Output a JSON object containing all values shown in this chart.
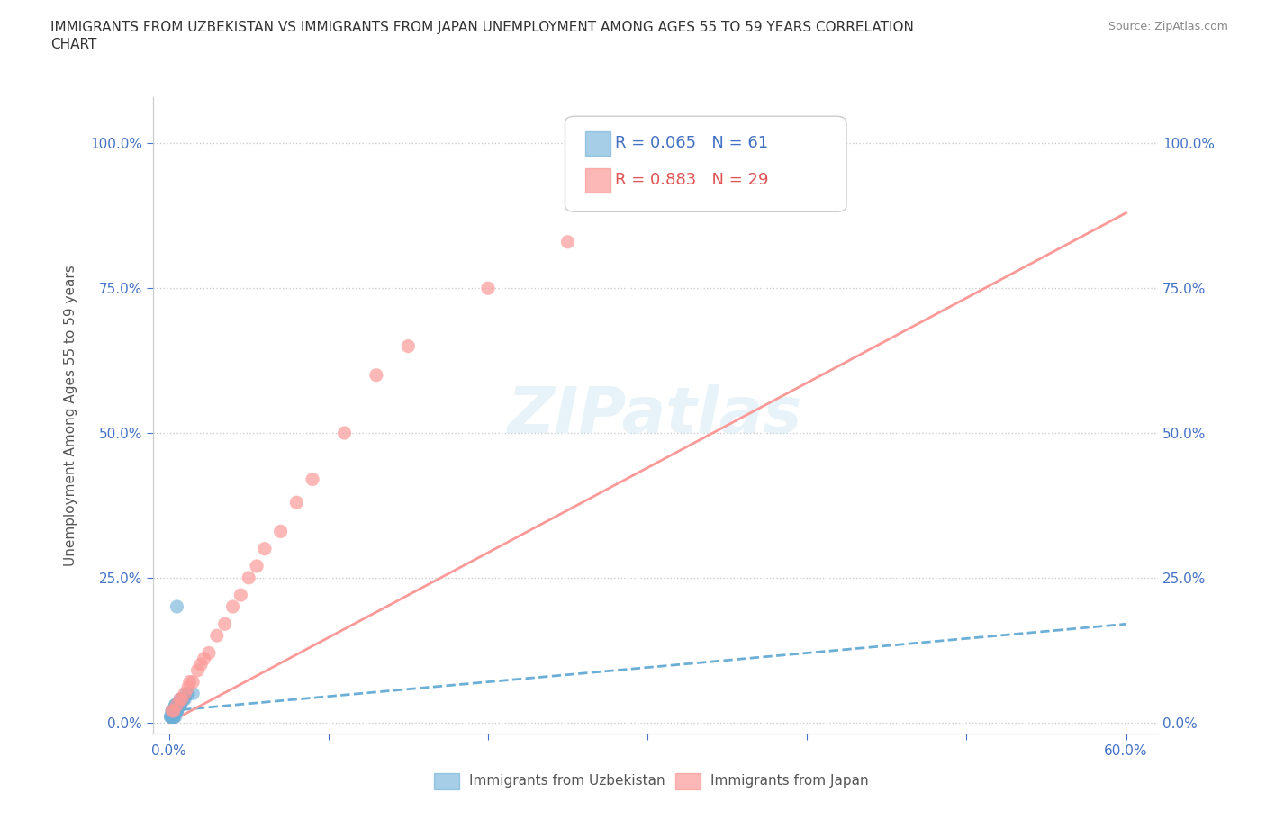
{
  "title_line1": "IMMIGRANTS FROM UZBEKISTAN VS IMMIGRANTS FROM JAPAN UNEMPLOYMENT AMONG AGES 55 TO 59 YEARS CORRELATION",
  "title_line2": "CHART",
  "source": "Source: ZipAtlas.com",
  "ylabel_ticks": [
    0.0,
    0.25,
    0.5,
    0.75,
    1.0
  ],
  "ylabel_labels": [
    "0.0%",
    "25.0%",
    "50.0%",
    "75.0%",
    "100.0%"
  ],
  "xlabel_ticks": [
    0.0,
    0.1,
    0.2,
    0.3,
    0.4,
    0.5,
    0.6
  ],
  "xlabel_labels": [
    "0.0%",
    "",
    "",
    "",
    "",
    "",
    "60.0%"
  ],
  "ylabel_axis_label": "Unemployment Among Ages 55 to 59 years",
  "uzbekistan_color": "#6baed6",
  "japan_color": "#fb9a99",
  "uzbekistan_R": 0.065,
  "uzbekistan_N": 61,
  "japan_R": 0.883,
  "japan_N": 29,
  "watermark": "ZIPatlas",
  "legend_bottom_label1": "Immigrants from Uzbekistan",
  "legend_bottom_label2": "Immigrants from Japan",
  "uzbekistan_x": [
    0.005,
    0.008,
    0.003,
    0.002,
    0.004,
    0.006,
    0.01,
    0.012,
    0.007,
    0.003,
    0.001,
    0.002,
    0.005,
    0.008,
    0.015,
    0.003,
    0.004,
    0.006,
    0.007,
    0.009,
    0.002,
    0.004,
    0.003,
    0.005,
    0.008,
    0.011,
    0.006,
    0.004,
    0.003,
    0.007,
    0.002,
    0.001,
    0.003,
    0.005,
    0.004,
    0.006,
    0.008,
    0.003,
    0.002,
    0.004,
    0.007,
    0.009,
    0.005,
    0.003,
    0.006,
    0.004,
    0.002,
    0.005,
    0.008,
    0.003,
    0.004,
    0.006,
    0.002,
    0.003,
    0.005,
    0.004,
    0.007,
    0.003,
    0.002,
    0.005,
    0.004
  ],
  "uzbekistan_y": [
    0.2,
    0.04,
    0.02,
    0.02,
    0.03,
    0.03,
    0.04,
    0.05,
    0.03,
    0.02,
    0.01,
    0.02,
    0.03,
    0.04,
    0.05,
    0.02,
    0.03,
    0.03,
    0.04,
    0.04,
    0.01,
    0.02,
    0.02,
    0.03,
    0.04,
    0.05,
    0.03,
    0.02,
    0.01,
    0.03,
    0.01,
    0.01,
    0.02,
    0.03,
    0.02,
    0.03,
    0.04,
    0.02,
    0.01,
    0.02,
    0.03,
    0.04,
    0.02,
    0.01,
    0.03,
    0.02,
    0.01,
    0.02,
    0.04,
    0.01,
    0.02,
    0.03,
    0.01,
    0.01,
    0.02,
    0.01,
    0.03,
    0.01,
    0.01,
    0.02,
    0.02
  ],
  "japan_x": [
    0.005,
    0.01,
    0.015,
    0.02,
    0.025,
    0.03,
    0.04,
    0.05,
    0.06,
    0.08,
    0.002,
    0.008,
    0.012,
    0.018,
    0.022,
    0.035,
    0.045,
    0.055,
    0.07,
    0.09,
    0.003,
    0.007,
    0.013,
    0.11,
    0.13,
    0.15,
    0.2,
    0.25,
    0.33
  ],
  "japan_y": [
    0.03,
    0.05,
    0.07,
    0.1,
    0.12,
    0.15,
    0.2,
    0.25,
    0.3,
    0.38,
    0.02,
    0.04,
    0.06,
    0.09,
    0.11,
    0.17,
    0.22,
    0.27,
    0.33,
    0.42,
    0.02,
    0.04,
    0.07,
    0.5,
    0.6,
    0.65,
    0.75,
    0.83,
    0.97
  ],
  "uzbekistan_trend_x": [
    0.0,
    0.6
  ],
  "uzbekistan_trend_y": [
    0.02,
    0.17
  ],
  "japan_trend_x": [
    0.0,
    0.6
  ],
  "japan_trend_y": [
    0.0,
    0.88
  ]
}
